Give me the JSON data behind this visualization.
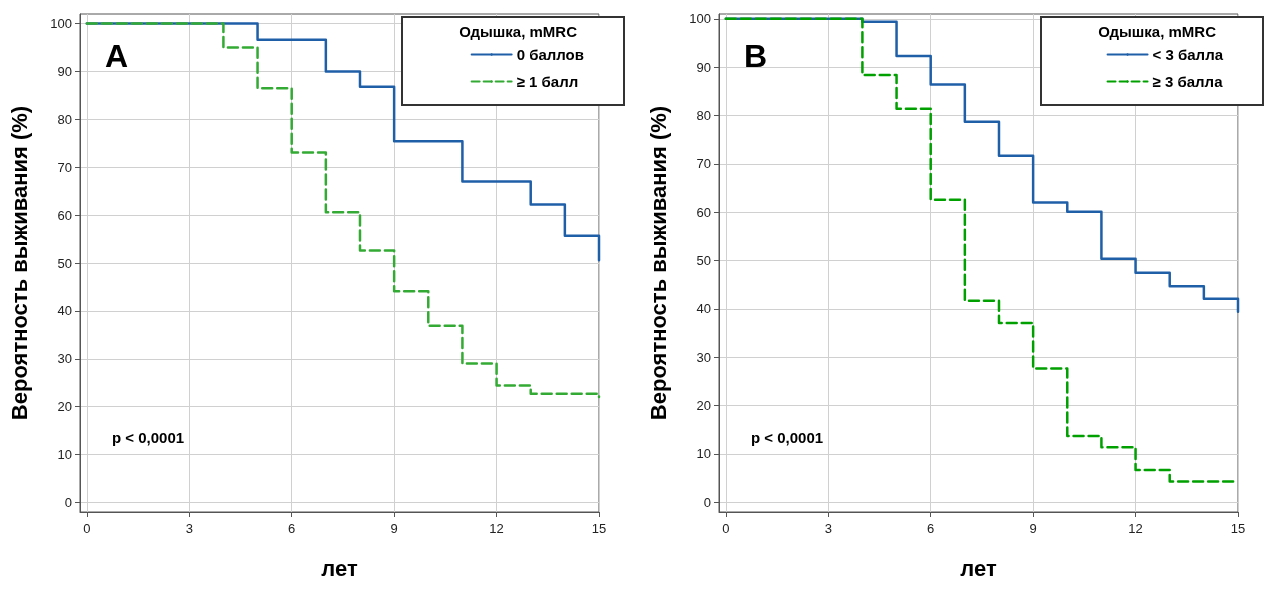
{
  "chart_data": [
    {
      "type": "step",
      "xlabel": "лет",
      "ylabel": "Вероятность выживания (%)",
      "legend_title": "Одышка, mMRC",
      "legend": "top right",
      "grid": true,
      "marker": "none",
      "xlim": [
        -0.2,
        15
      ],
      "xticks": [
        0,
        3,
        6,
        9,
        12,
        15
      ],
      "ylim": [
        -2,
        102
      ],
      "yticks": [
        0,
        10,
        20,
        30,
        40,
        50,
        60,
        70,
        80,
        90,
        100
      ],
      "annotations": [
        "A",
        "p < 0,0001"
      ],
      "series": [
        {
          "name": "0 баллов",
          "color": "#1f5fa8",
          "line_style": "solid",
          "x": [
            0,
            5,
            7,
            8,
            9,
            11,
            13,
            14,
            15
          ],
          "values": [
            100,
            96.6,
            90,
            86.8,
            75.4,
            67,
            62.2,
            55.7,
            50.6
          ]
        },
        {
          "name": "≥ 1 балл",
          "color": "#33aa33",
          "line_style": "dashed",
          "x": [
            0,
            4,
            5,
            6,
            7,
            8,
            9,
            10,
            11,
            12,
            13,
            15
          ],
          "values": [
            100,
            95,
            86.5,
            73.1,
            60.6,
            52.6,
            44.1,
            36.9,
            29,
            24.4,
            22.7,
            22
          ]
        }
      ]
    },
    {
      "type": "step",
      "xlabel": "лет",
      "ylabel": "Вероятность выживания (%)",
      "legend_title": "Одышка, mMRC",
      "legend": "top right",
      "grid": true,
      "marker": "none",
      "xlim": [
        -0.2,
        15
      ],
      "xticks": [
        0,
        3,
        6,
        9,
        12,
        15
      ],
      "ylim": [
        -2,
        101
      ],
      "yticks": [
        0,
        10,
        20,
        30,
        40,
        50,
        60,
        70,
        80,
        90,
        100
      ],
      "annotations": [
        "B",
        "p < 0,0001"
      ],
      "series": [
        {
          "name": "< 3 балла",
          "color": "#1f5fa8",
          "line_style": "solid",
          "x": [
            0,
            4,
            5,
            6,
            7,
            8,
            9,
            10,
            11,
            12,
            13,
            14,
            15
          ],
          "values": [
            100,
            99.4,
            92.3,
            86.4,
            78.7,
            71.7,
            62,
            60.1,
            50.4,
            47.5,
            44.7,
            42.1,
            39.4
          ]
        },
        {
          "name": "≥ 3 балла",
          "color": "#00a000",
          "line_style": "dashed",
          "x": [
            0,
            4,
            5,
            6,
            7,
            8,
            9,
            10,
            11,
            12,
            13,
            15
          ],
          "values": [
            100,
            88.4,
            81.4,
            62.6,
            41.7,
            37.1,
            27.7,
            13.7,
            11.4,
            6.7,
            4.3,
            4.3
          ]
        }
      ]
    }
  ]
}
